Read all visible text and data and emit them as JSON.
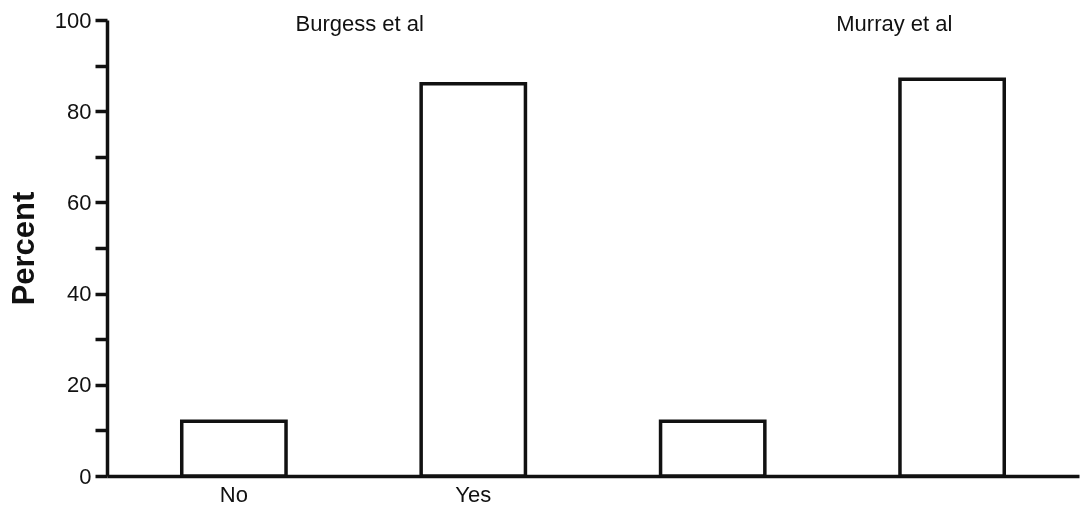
{
  "chart_data": {
    "type": "bar",
    "ylabel": "Percent",
    "categories": [
      "No",
      "Yes",
      null,
      null
    ],
    "series": [
      {
        "color": "#ffffff",
        "values": [
          12,
          86,
          12,
          87
        ]
      }
    ],
    "ylim": [
      0,
      100
    ],
    "yticks": [
      0,
      {
        "value": 10,
        "label": null
      },
      20,
      {
        "value": 30,
        "label": null
      },
      40,
      {
        "value": 50,
        "label": null
      },
      60,
      {
        "value": 70,
        "label": null
      },
      80,
      {
        "value": 90,
        "label": null
      },
      100
    ],
    "annotations": [
      "Burgess et al",
      "Murray et al"
    ]
  }
}
